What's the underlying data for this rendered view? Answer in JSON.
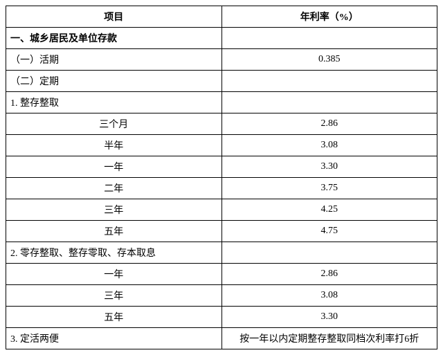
{
  "headers": {
    "item": "项目",
    "rate": "年利率（%）"
  },
  "rows": [
    {
      "item": "一、城乡居民及单位存款",
      "rate": "",
      "item_align": "left",
      "bold": true
    },
    {
      "item": "（一）活期",
      "rate": "0.385",
      "item_align": "left"
    },
    {
      "item": "（二）定期",
      "rate": "",
      "item_align": "left"
    },
    {
      "item": "1. 整存整取",
      "rate": "",
      "item_align": "left"
    },
    {
      "item": "三个月",
      "rate": "2.86",
      "item_align": "center"
    },
    {
      "item": "半年",
      "rate": "3.08",
      "item_align": "center"
    },
    {
      "item": "一年",
      "rate": "3.30",
      "item_align": "center"
    },
    {
      "item": "二年",
      "rate": "3.75",
      "item_align": "center"
    },
    {
      "item": "三年",
      "rate": "4.25",
      "item_align": "center"
    },
    {
      "item": "五年",
      "rate": "4.75",
      "item_align": "center"
    },
    {
      "item": "2. 零存整取、整存零取、存本取息",
      "rate": "",
      "item_align": "left"
    },
    {
      "item": "一年",
      "rate": "2.86",
      "item_align": "center"
    },
    {
      "item": "三年",
      "rate": "3.08",
      "item_align": "center"
    },
    {
      "item": "五年",
      "rate": "3.30",
      "item_align": "center"
    },
    {
      "item": "3. 定活两便",
      "rate": "按一年以内定期整存整取同档次利率打6折",
      "item_align": "left"
    }
  ]
}
